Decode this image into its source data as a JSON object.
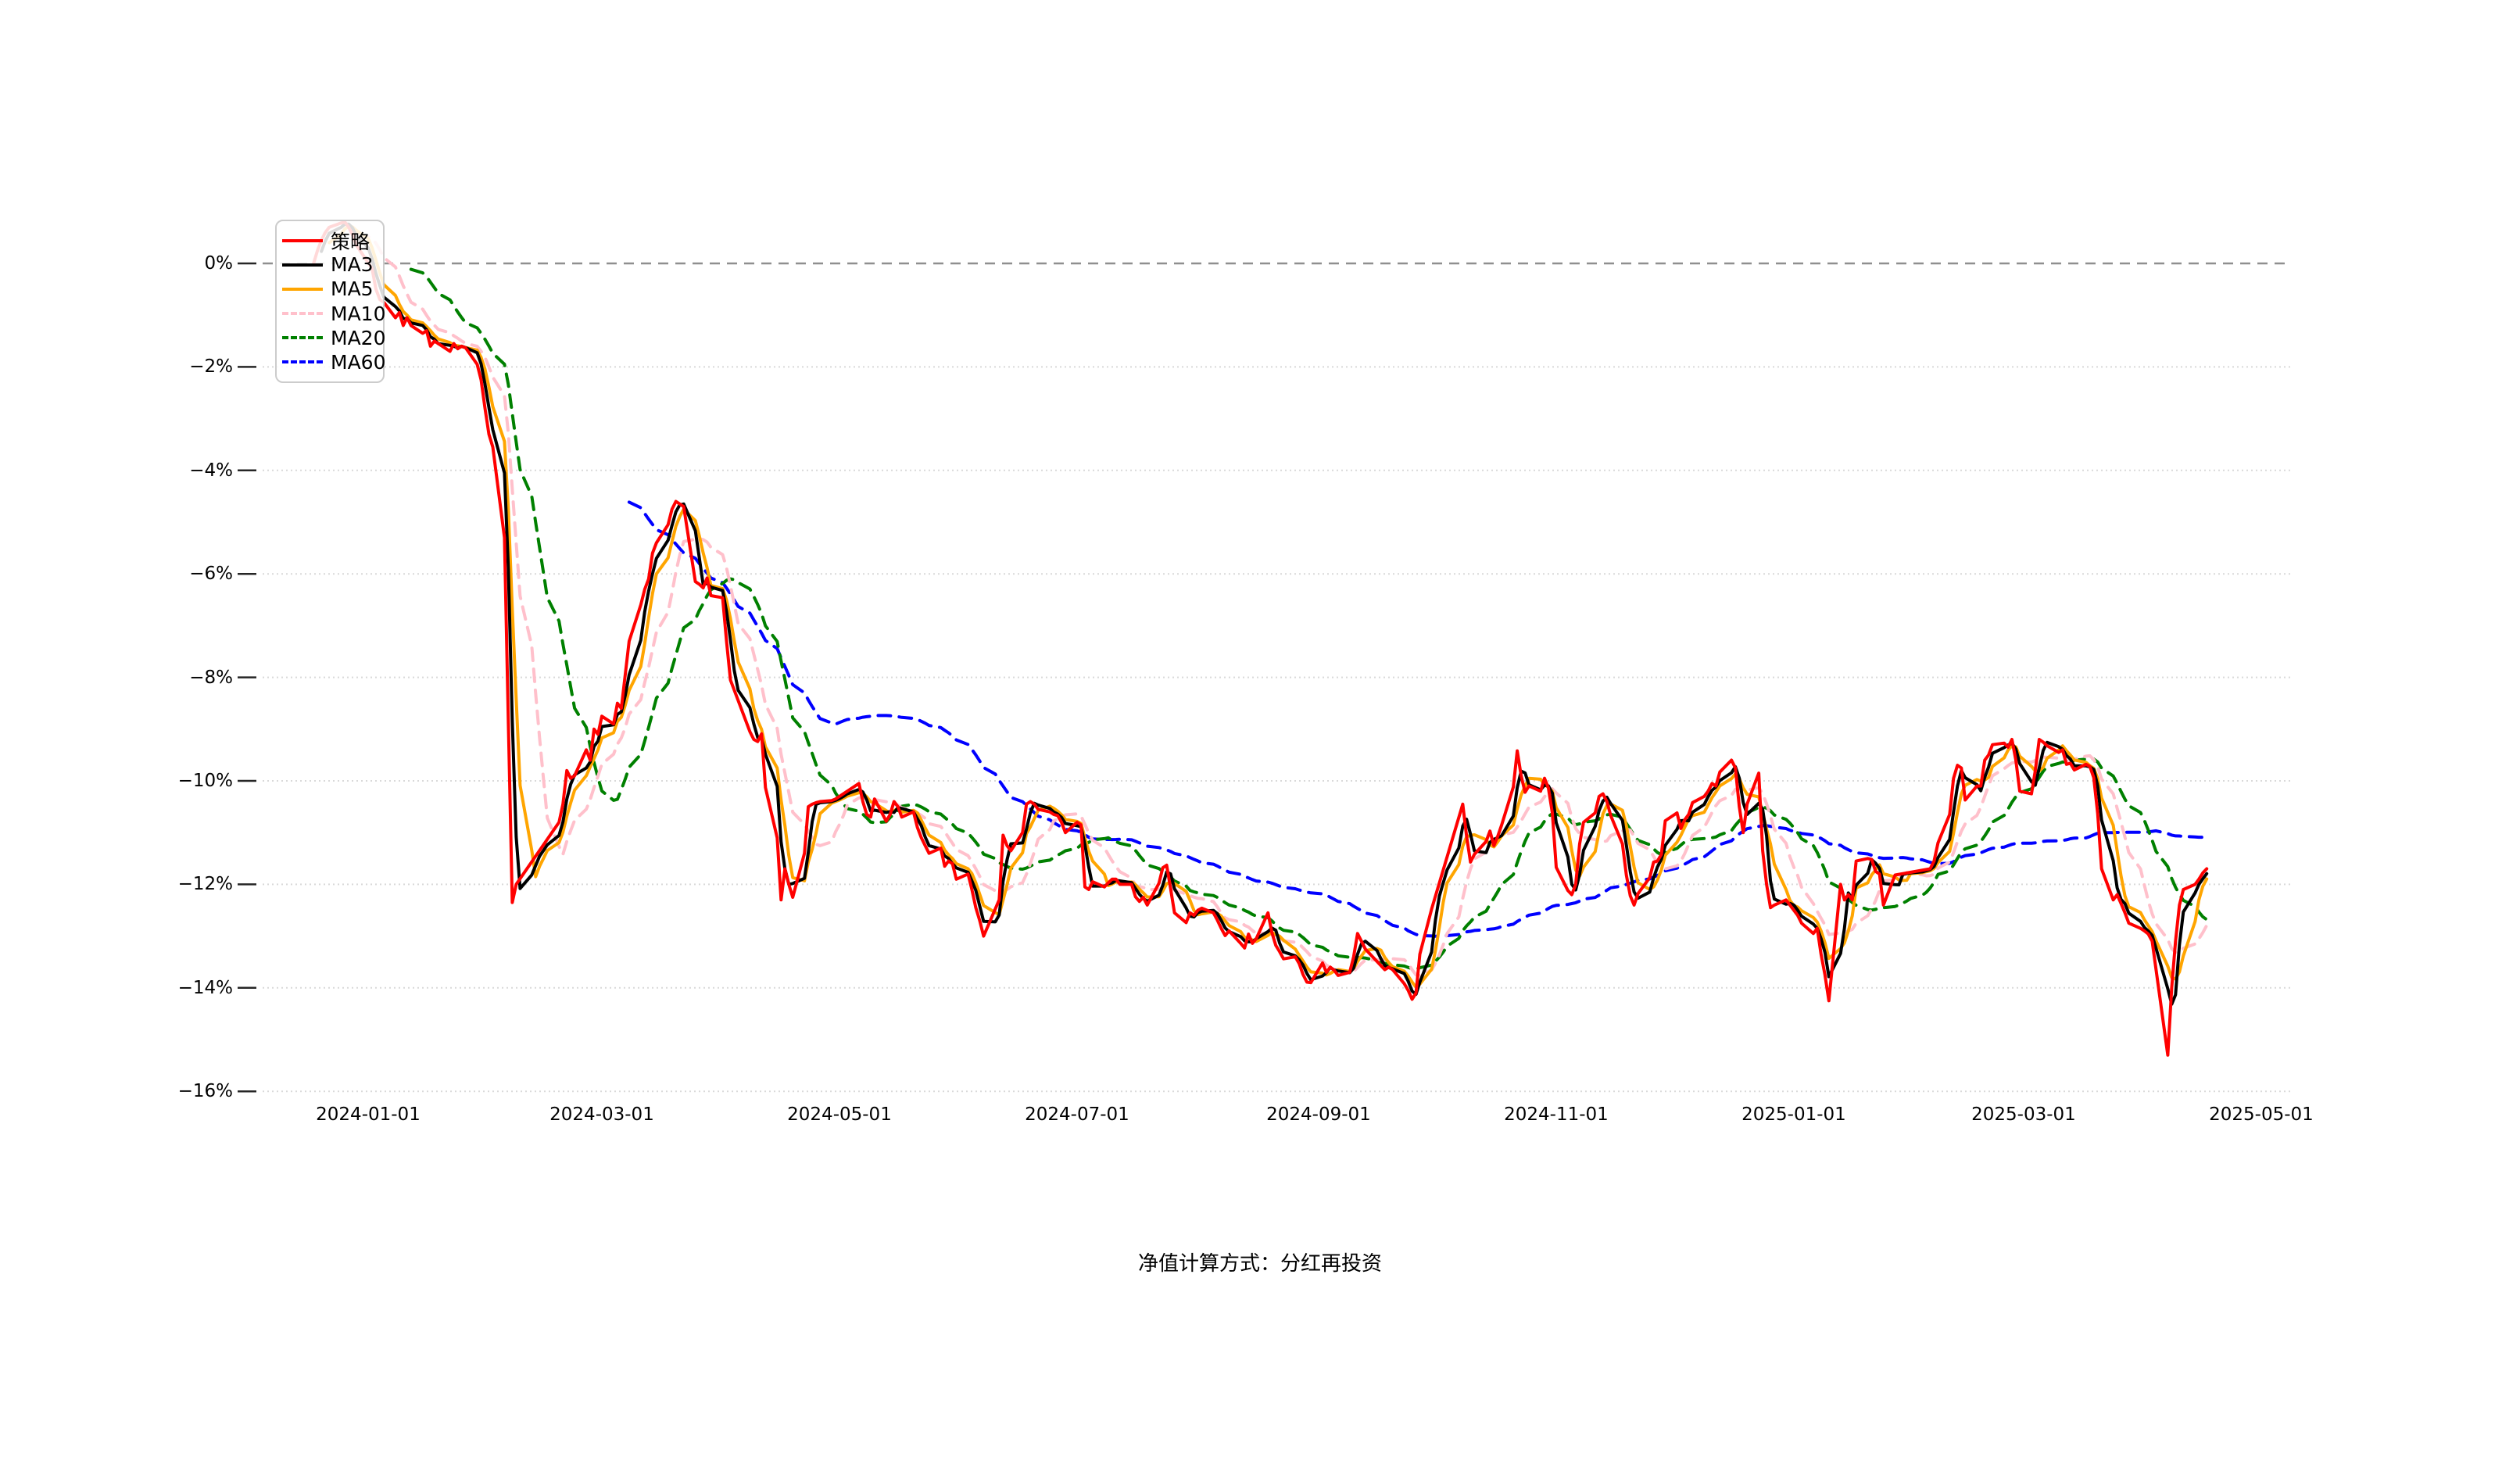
{
  "figure": {
    "caption": "净值计算方式：分红再投资",
    "background_color": "#ffffff",
    "grid_color": "#d9d9d9",
    "zero_line_color": "#8f8f8f",
    "text_color": "#000000"
  },
  "chart_data": {
    "type": "line",
    "title": "",
    "xlabel": "",
    "ylabel": "",
    "unit": "percent",
    "ylim": [
      -16,
      0
    ],
    "y_grid_interval": 2,
    "zero_line": true,
    "grid": true,
    "legend_position": "upper-left",
    "x_tick_labels": [
      "2024-01-01",
      "2024-03-01",
      "2024-05-01",
      "2024-07-01",
      "2024-09-01",
      "2024-11-01",
      "2025-01-01",
      "2025-03-01",
      "2025-05-01"
    ],
    "y_tick_labels": [
      "0%",
      "−2%",
      "−4%",
      "−6%",
      "−8%",
      "−10%",
      "−12%",
      "−14%",
      "−16%"
    ],
    "series": [
      {
        "name": "策略",
        "color": "#ff0000",
        "line_style": "solid",
        "width": 4
      },
      {
        "name": "MA3",
        "color": "#000000",
        "line_style": "solid",
        "width": 4,
        "window": 3
      },
      {
        "name": "MA5",
        "color": "#ffa500",
        "line_style": "solid",
        "width": 4,
        "window": 5
      },
      {
        "name": "MA10",
        "color": "#ffc0cb",
        "line_style": "dashed",
        "width": 4,
        "window": 10
      },
      {
        "name": "MA20",
        "color": "#008000",
        "line_style": "dashed",
        "width": 4,
        "window": 20
      },
      {
        "name": "MA60",
        "color": "#0000ff",
        "line_style": "dashed",
        "width": 4,
        "window": 60
      }
    ],
    "strategy_points": [
      [
        "2023-12-18",
        0.0
      ],
      [
        "2023-12-19",
        0.25
      ],
      [
        "2023-12-20",
        0.45
      ],
      [
        "2023-12-21",
        0.6
      ],
      [
        "2023-12-22",
        0.7
      ],
      [
        "2023-12-25",
        0.78
      ],
      [
        "2023-12-26",
        0.8
      ],
      [
        "2023-12-27",
        0.7
      ],
      [
        "2023-12-28",
        0.55
      ],
      [
        "2023-12-29",
        0.35
      ],
      [
        "2024-01-02",
        -0.1
      ],
      [
        "2024-01-03",
        -0.5
      ],
      [
        "2024-01-04",
        -0.7
      ],
      [
        "2024-01-05",
        -0.75
      ],
      [
        "2024-01-08",
        -1.05
      ],
      [
        "2024-01-09",
        -0.95
      ],
      [
        "2024-01-10",
        -1.2
      ],
      [
        "2024-01-11",
        -1.05
      ],
      [
        "2024-01-12",
        -1.2
      ],
      [
        "2024-01-15",
        -1.35
      ],
      [
        "2024-01-16",
        -1.3
      ],
      [
        "2024-01-17",
        -1.6
      ],
      [
        "2024-01-18",
        -1.5
      ],
      [
        "2024-01-19",
        -1.55
      ],
      [
        "2024-01-22",
        -1.7
      ],
      [
        "2024-01-23",
        -1.55
      ],
      [
        "2024-01-24",
        -1.65
      ],
      [
        "2024-01-25",
        -1.6
      ],
      [
        "2024-01-26",
        -1.63
      ],
      [
        "2024-01-29",
        -1.95
      ],
      [
        "2024-01-30",
        -2.25
      ],
      [
        "2024-01-31",
        -2.8
      ],
      [
        "2024-02-01",
        -3.3
      ],
      [
        "2024-02-02",
        -3.55
      ],
      [
        "2024-02-05",
        -5.3
      ],
      [
        "2024-02-06",
        -8.9
      ],
      [
        "2024-02-07",
        -12.35
      ],
      [
        "2024-02-08",
        -12.0
      ],
      [
        "2024-02-19",
        -10.8
      ],
      [
        "2024-02-20",
        -10.45
      ],
      [
        "2024-02-21",
        -9.8
      ],
      [
        "2024-02-22",
        -9.95
      ],
      [
        "2024-02-23",
        -9.9
      ],
      [
        "2024-02-26",
        -9.4
      ],
      [
        "2024-02-27",
        -9.6
      ],
      [
        "2024-02-28",
        -9.0
      ],
      [
        "2024-02-29",
        -9.1
      ],
      [
        "2024-03-01",
        -8.75
      ],
      [
        "2024-03-04",
        -8.9
      ],
      [
        "2024-03-05",
        -8.5
      ],
      [
        "2024-03-06",
        -8.6
      ],
      [
        "2024-03-07",
        -7.95
      ],
      [
        "2024-03-08",
        -7.3
      ],
      [
        "2024-03-11",
        -6.6
      ],
      [
        "2024-03-12",
        -6.3
      ],
      [
        "2024-03-13",
        -6.1
      ],
      [
        "2024-03-14",
        -5.6
      ],
      [
        "2024-03-15",
        -5.4
      ],
      [
        "2024-03-18",
        -5.05
      ],
      [
        "2024-03-19",
        -4.75
      ],
      [
        "2024-03-20",
        -4.6
      ],
      [
        "2024-03-21",
        -4.65
      ],
      [
        "2024-03-22",
        -4.7
      ],
      [
        "2024-03-25",
        -6.15
      ],
      [
        "2024-03-26",
        -6.2
      ],
      [
        "2024-03-27",
        -6.27
      ],
      [
        "2024-03-28",
        -6.08
      ],
      [
        "2024-03-29",
        -6.42
      ],
      [
        "2024-04-01",
        -6.46
      ],
      [
        "2024-04-02",
        -7.3
      ],
      [
        "2024-04-03",
        -8.05
      ],
      [
        "2024-04-08",
        -9.05
      ],
      [
        "2024-04-09",
        -9.2
      ],
      [
        "2024-04-10",
        -9.24
      ],
      [
        "2024-04-11",
        -9.09
      ],
      [
        "2024-04-12",
        -10.13
      ],
      [
        "2024-04-15",
        -11.1
      ],
      [
        "2024-04-16",
        -12.3
      ],
      [
        "2024-04-17",
        -11.7
      ],
      [
        "2024-04-18",
        -12.0
      ],
      [
        "2024-04-19",
        -12.25
      ],
      [
        "2024-04-22",
        -11.4
      ],
      [
        "2024-04-23",
        -10.5
      ],
      [
        "2024-04-24",
        -10.45
      ],
      [
        "2024-04-25",
        -10.42
      ],
      [
        "2024-04-26",
        -10.4
      ],
      [
        "2024-04-29",
        -10.38
      ],
      [
        "2024-04-30",
        -10.35
      ],
      [
        "2024-05-06",
        -10.05
      ],
      [
        "2024-05-07",
        -10.4
      ],
      [
        "2024-05-08",
        -10.65
      ],
      [
        "2024-05-09",
        -10.7
      ],
      [
        "2024-05-10",
        -10.35
      ],
      [
        "2024-05-13",
        -10.78
      ],
      [
        "2024-05-14",
        -10.65
      ],
      [
        "2024-05-15",
        -10.4
      ],
      [
        "2024-05-16",
        -10.5
      ],
      [
        "2024-05-17",
        -10.7
      ],
      [
        "2024-05-20",
        -10.6
      ],
      [
        "2024-05-21",
        -10.9
      ],
      [
        "2024-05-22",
        -11.1
      ],
      [
        "2024-05-23",
        -11.25
      ],
      [
        "2024-05-24",
        -11.4
      ],
      [
        "2024-05-27",
        -11.3
      ],
      [
        "2024-05-28",
        -11.65
      ],
      [
        "2024-05-29",
        -11.55
      ],
      [
        "2024-05-30",
        -11.6
      ],
      [
        "2024-05-31",
        -11.9
      ],
      [
        "2024-06-03",
        -11.8
      ],
      [
        "2024-06-04",
        -12.1
      ],
      [
        "2024-06-05",
        -12.45
      ],
      [
        "2024-06-06",
        -12.7
      ],
      [
        "2024-06-07",
        -13.0
      ],
      [
        "2024-06-11",
        -12.3
      ],
      [
        "2024-06-12",
        -11.05
      ],
      [
        "2024-06-13",
        -11.25
      ],
      [
        "2024-06-14",
        -11.35
      ],
      [
        "2024-06-17",
        -11.0
      ],
      [
        "2024-06-18",
        -10.45
      ],
      [
        "2024-06-19",
        -10.4
      ],
      [
        "2024-06-20",
        -10.45
      ],
      [
        "2024-06-21",
        -10.55
      ],
      [
        "2024-06-24",
        -10.6
      ],
      [
        "2024-06-25",
        -10.65
      ],
      [
        "2024-06-26",
        -10.67
      ],
      [
        "2024-06-27",
        -10.8
      ],
      [
        "2024-06-28",
        -11.0
      ],
      [
        "2024-07-01",
        -10.8
      ],
      [
        "2024-07-02",
        -10.85
      ],
      [
        "2024-07-03",
        -12.05
      ],
      [
        "2024-07-04",
        -12.1
      ],
      [
        "2024-07-05",
        -11.95
      ],
      [
        "2024-07-08",
        -12.05
      ],
      [
        "2024-07-09",
        -11.97
      ],
      [
        "2024-07-10",
        -11.9
      ],
      [
        "2024-07-11",
        -11.9
      ],
      [
        "2024-07-12",
        -12.0
      ],
      [
        "2024-07-15",
        -12.0
      ],
      [
        "2024-07-16",
        -12.24
      ],
      [
        "2024-07-17",
        -12.33
      ],
      [
        "2024-07-18",
        -12.25
      ],
      [
        "2024-07-19",
        -12.4
      ],
      [
        "2024-07-22",
        -11.98
      ],
      [
        "2024-07-23",
        -11.68
      ],
      [
        "2024-07-24",
        -11.63
      ],
      [
        "2024-07-25",
        -12.08
      ],
      [
        "2024-07-26",
        -12.55
      ],
      [
        "2024-07-29",
        -12.74
      ],
      [
        "2024-07-30",
        -12.55
      ],
      [
        "2024-07-31",
        -12.6
      ],
      [
        "2024-08-01",
        -12.5
      ],
      [
        "2024-08-02",
        -12.46
      ],
      [
        "2024-08-05",
        -12.55
      ],
      [
        "2024-08-06",
        -12.69
      ],
      [
        "2024-08-07",
        -12.85
      ],
      [
        "2024-08-08",
        -12.99
      ],
      [
        "2024-08-09",
        -12.9
      ],
      [
        "2024-08-12",
        -13.14
      ],
      [
        "2024-08-13",
        -13.23
      ],
      [
        "2024-08-14",
        -12.96
      ],
      [
        "2024-08-15",
        -13.14
      ],
      [
        "2024-08-16",
        -13.05
      ],
      [
        "2024-08-19",
        -12.55
      ],
      [
        "2024-08-20",
        -12.93
      ],
      [
        "2024-08-21",
        -13.18
      ],
      [
        "2024-08-22",
        -13.3
      ],
      [
        "2024-08-23",
        -13.44
      ],
      [
        "2024-08-26",
        -13.4
      ],
      [
        "2024-08-27",
        -13.53
      ],
      [
        "2024-08-28",
        -13.74
      ],
      [
        "2024-08-29",
        -13.89
      ],
      [
        "2024-08-30",
        -13.9
      ],
      [
        "2024-09-02",
        -13.52
      ],
      [
        "2024-09-03",
        -13.7
      ],
      [
        "2024-09-04",
        -13.6
      ],
      [
        "2024-09-05",
        -13.66
      ],
      [
        "2024-09-06",
        -13.76
      ],
      [
        "2024-09-09",
        -13.7
      ],
      [
        "2024-09-10",
        -13.4
      ],
      [
        "2024-09-11",
        -12.95
      ],
      [
        "2024-09-12",
        -13.1
      ],
      [
        "2024-09-13",
        -13.25
      ],
      [
        "2024-09-18",
        -13.65
      ],
      [
        "2024-09-19",
        -13.6
      ],
      [
        "2024-09-20",
        -13.65
      ],
      [
        "2024-09-23",
        -13.92
      ],
      [
        "2024-09-24",
        -14.05
      ],
      [
        "2024-09-25",
        -14.22
      ],
      [
        "2024-09-26",
        -14.1
      ],
      [
        "2024-09-27",
        -13.35
      ],
      [
        "2024-09-30",
        -12.48
      ],
      [
        "2024-10-08",
        -10.45
      ],
      [
        "2024-10-09",
        -11.07
      ],
      [
        "2024-10-10",
        -11.57
      ],
      [
        "2024-10-11",
        -11.42
      ],
      [
        "2024-10-14",
        -11.17
      ],
      [
        "2024-10-15",
        -10.97
      ],
      [
        "2024-10-16",
        -11.25
      ],
      [
        "2024-10-17",
        -11.07
      ],
      [
        "2024-10-18",
        -10.85
      ],
      [
        "2024-10-21",
        -10.12
      ],
      [
        "2024-10-22",
        -9.42
      ],
      [
        "2024-10-23",
        -9.9
      ],
      [
        "2024-10-24",
        -10.22
      ],
      [
        "2024-10-25",
        -10.1
      ],
      [
        "2024-10-28",
        -10.2
      ],
      [
        "2024-10-29",
        -9.95
      ],
      [
        "2024-10-30",
        -10.14
      ],
      [
        "2024-10-31",
        -10.62
      ],
      [
        "2024-11-01",
        -11.67
      ],
      [
        "2024-11-04",
        -12.12
      ],
      [
        "2024-11-05",
        -12.2
      ],
      [
        "2024-11-06",
        -12.0
      ],
      [
        "2024-11-07",
        -11.22
      ],
      [
        "2024-11-08",
        -10.8
      ],
      [
        "2024-11-11",
        -10.62
      ],
      [
        "2024-11-12",
        -10.3
      ],
      [
        "2024-11-13",
        -10.25
      ],
      [
        "2024-11-14",
        -10.4
      ],
      [
        "2024-11-15",
        -10.67
      ],
      [
        "2024-11-18",
        -11.22
      ],
      [
        "2024-11-19",
        -11.82
      ],
      [
        "2024-11-20",
        -12.22
      ],
      [
        "2024-11-21",
        -12.4
      ],
      [
        "2024-11-22",
        -12.18
      ],
      [
        "2024-11-25",
        -11.87
      ],
      [
        "2024-11-26",
        -11.57
      ],
      [
        "2024-11-27",
        -11.55
      ],
      [
        "2024-11-28",
        -11.42
      ],
      [
        "2024-11-29",
        -10.77
      ],
      [
        "2024-12-02",
        -10.62
      ],
      [
        "2024-12-03",
        -10.92
      ],
      [
        "2024-12-04",
        -10.75
      ],
      [
        "2024-12-05",
        -10.65
      ],
      [
        "2024-12-06",
        -10.42
      ],
      [
        "2024-12-09",
        -10.3
      ],
      [
        "2024-12-10",
        -10.2
      ],
      [
        "2024-12-11",
        -10.05
      ],
      [
        "2024-12-12",
        -10.1
      ],
      [
        "2024-12-13",
        -9.83
      ],
      [
        "2024-12-16",
        -9.6
      ],
      [
        "2024-12-17",
        -9.75
      ],
      [
        "2024-12-18",
        -10.5
      ],
      [
        "2024-12-19",
        -11.0
      ],
      [
        "2024-12-20",
        -10.45
      ],
      [
        "2024-12-23",
        -9.85
      ],
      [
        "2024-12-24",
        -11.35
      ],
      [
        "2024-12-25",
        -12.0
      ],
      [
        "2024-12-26",
        -12.45
      ],
      [
        "2024-12-27",
        -12.4
      ],
      [
        "2024-12-30",
        -12.3
      ],
      [
        "2024-12-31",
        -12.4
      ],
      [
        "2025-01-02",
        -12.6
      ],
      [
        "2025-01-03",
        -12.75
      ],
      [
        "2025-01-06",
        -12.95
      ],
      [
        "2025-01-07",
        -12.85
      ],
      [
        "2025-01-08",
        -13.35
      ],
      [
        "2025-01-09",
        -13.75
      ],
      [
        "2025-01-10",
        -14.25
      ],
      [
        "2025-01-13",
        -12.0
      ],
      [
        "2025-01-14",
        -12.3
      ],
      [
        "2025-01-15",
        -12.2
      ],
      [
        "2025-01-16",
        -12.3
      ],
      [
        "2025-01-17",
        -11.55
      ],
      [
        "2025-01-20",
        -11.5
      ],
      [
        "2025-01-21",
        -11.52
      ],
      [
        "2025-01-22",
        -11.75
      ],
      [
        "2025-01-23",
        -11.8
      ],
      [
        "2025-01-24",
        -12.4
      ],
      [
        "2025-01-27",
        -11.82
      ],
      [
        "2025-02-05",
        -11.7
      ],
      [
        "2025-02-06",
        -11.55
      ],
      [
        "2025-02-07",
        -11.2
      ],
      [
        "2025-02-10",
        -10.65
      ],
      [
        "2025-02-11",
        -9.95
      ],
      [
        "2025-02-12",
        -9.7
      ],
      [
        "2025-02-13",
        -9.75
      ],
      [
        "2025-02-14",
        -10.37
      ],
      [
        "2025-02-17",
        -10.1
      ],
      [
        "2025-02-18",
        -10.1
      ],
      [
        "2025-02-19",
        -9.6
      ],
      [
        "2025-02-20",
        -9.5
      ],
      [
        "2025-02-21",
        -9.3
      ],
      [
        "2025-02-24",
        -9.27
      ],
      [
        "2025-02-25",
        -9.35
      ],
      [
        "2025-02-26",
        -9.2
      ],
      [
        "2025-02-27",
        -9.6
      ],
      [
        "2025-02-28",
        -10.2
      ],
      [
        "2025-03-03",
        -10.25
      ],
      [
        "2025-03-04",
        -9.8
      ],
      [
        "2025-03-05",
        -9.2
      ],
      [
        "2025-03-06",
        -9.25
      ],
      [
        "2025-03-07",
        -9.32
      ],
      [
        "2025-03-10",
        -9.45
      ],
      [
        "2025-03-11",
        -9.4
      ],
      [
        "2025-03-12",
        -9.68
      ],
      [
        "2025-03-13",
        -9.66
      ],
      [
        "2025-03-14",
        -9.79
      ],
      [
        "2025-03-17",
        -9.68
      ],
      [
        "2025-03-18",
        -9.72
      ],
      [
        "2025-03-19",
        -9.94
      ],
      [
        "2025-03-20",
        -10.63
      ],
      [
        "2025-03-21",
        -11.7
      ],
      [
        "2025-03-24",
        -12.3
      ],
      [
        "2025-03-25",
        -12.2
      ],
      [
        "2025-03-26",
        -12.37
      ],
      [
        "2025-03-27",
        -12.55
      ],
      [
        "2025-03-28",
        -12.75
      ],
      [
        "2025-03-31",
        -12.85
      ],
      [
        "2025-04-01",
        -12.9
      ],
      [
        "2025-04-02",
        -12.96
      ],
      [
        "2025-04-03",
        -13.1
      ],
      [
        "2025-04-07",
        -15.3
      ],
      [
        "2025-04-08",
        -14.0
      ],
      [
        "2025-04-09",
        -13.1
      ],
      [
        "2025-04-10",
        -12.4
      ],
      [
        "2025-04-11",
        -12.1
      ],
      [
        "2025-04-14",
        -12.0
      ],
      [
        "2025-04-15",
        -11.9
      ],
      [
        "2025-04-16",
        -11.78
      ],
      [
        "2025-04-17",
        -11.7
      ]
    ]
  }
}
